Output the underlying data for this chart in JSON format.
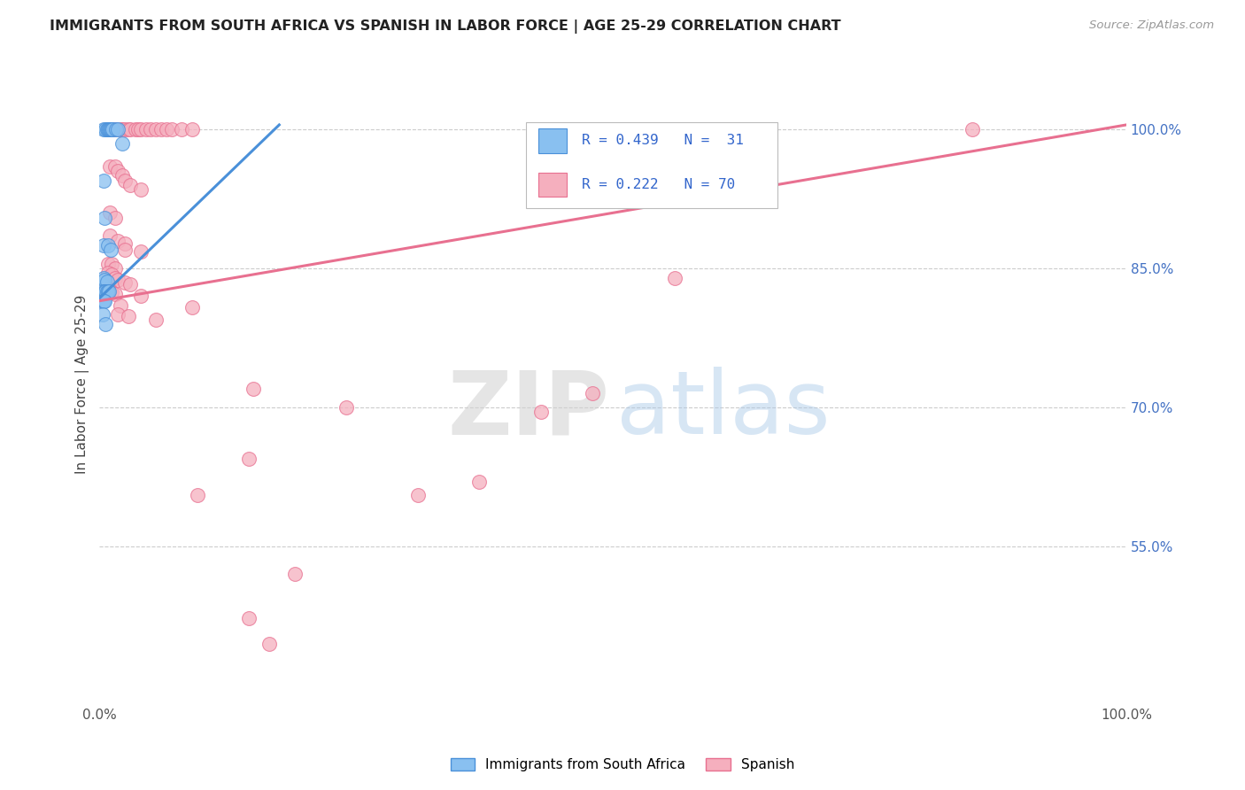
{
  "title": "IMMIGRANTS FROM SOUTH AFRICA VS SPANISH IN LABOR FORCE | AGE 25-29 CORRELATION CHART",
  "source": "Source: ZipAtlas.com",
  "ylabel": "In Labor Force | Age 25-29",
  "xlim": [
    0.0,
    1.0
  ],
  "ylim": [
    0.38,
    1.07
  ],
  "y_ticks": [
    0.55,
    0.7,
    0.85,
    1.0
  ],
  "y_tick_labels": [
    "55.0%",
    "70.0%",
    "85.0%",
    "100.0%"
  ],
  "grid_color": "#cccccc",
  "background_color": "#ffffff",
  "blue_color": "#89C0F0",
  "pink_color": "#F5AFBE",
  "blue_line_color": "#4A90D9",
  "pink_line_color": "#E87090",
  "blue_scatter": [
    [
      0.004,
      1.0
    ],
    [
      0.006,
      1.0
    ],
    [
      0.007,
      1.0
    ],
    [
      0.008,
      1.0
    ],
    [
      0.009,
      1.0
    ],
    [
      0.01,
      1.0
    ],
    [
      0.011,
      1.0
    ],
    [
      0.012,
      1.0
    ],
    [
      0.013,
      1.0
    ],
    [
      0.016,
      1.0
    ],
    [
      0.018,
      1.0
    ],
    [
      0.022,
      0.985
    ],
    [
      0.004,
      0.945
    ],
    [
      0.005,
      0.905
    ],
    [
      0.004,
      0.875
    ],
    [
      0.008,
      0.875
    ],
    [
      0.011,
      0.87
    ],
    [
      0.004,
      0.84
    ],
    [
      0.005,
      0.838
    ],
    [
      0.007,
      0.836
    ],
    [
      0.003,
      0.825
    ],
    [
      0.005,
      0.825
    ],
    [
      0.006,
      0.825
    ],
    [
      0.007,
      0.825
    ],
    [
      0.008,
      0.825
    ],
    [
      0.009,
      0.825
    ],
    [
      0.003,
      0.815
    ],
    [
      0.004,
      0.815
    ],
    [
      0.005,
      0.815
    ],
    [
      0.003,
      0.8
    ],
    [
      0.006,
      0.79
    ]
  ],
  "pink_scatter": [
    [
      0.008,
      1.0
    ],
    [
      0.012,
      1.0
    ],
    [
      0.015,
      1.0
    ],
    [
      0.02,
      1.0
    ],
    [
      0.022,
      1.0
    ],
    [
      0.025,
      1.0
    ],
    [
      0.028,
      1.0
    ],
    [
      0.03,
      1.0
    ],
    [
      0.035,
      1.0
    ],
    [
      0.038,
      1.0
    ],
    [
      0.04,
      1.0
    ],
    [
      0.045,
      1.0
    ],
    [
      0.05,
      1.0
    ],
    [
      0.055,
      1.0
    ],
    [
      0.06,
      1.0
    ],
    [
      0.065,
      1.0
    ],
    [
      0.07,
      1.0
    ],
    [
      0.08,
      1.0
    ],
    [
      0.09,
      1.0
    ],
    [
      0.85,
      1.0
    ],
    [
      0.01,
      0.96
    ],
    [
      0.015,
      0.96
    ],
    [
      0.018,
      0.955
    ],
    [
      0.022,
      0.95
    ],
    [
      0.025,
      0.945
    ],
    [
      0.03,
      0.94
    ],
    [
      0.04,
      0.935
    ],
    [
      0.01,
      0.91
    ],
    [
      0.015,
      0.905
    ],
    [
      0.01,
      0.885
    ],
    [
      0.018,
      0.88
    ],
    [
      0.025,
      0.877
    ],
    [
      0.025,
      0.87
    ],
    [
      0.04,
      0.868
    ],
    [
      0.008,
      0.855
    ],
    [
      0.012,
      0.855
    ],
    [
      0.015,
      0.85
    ],
    [
      0.008,
      0.845
    ],
    [
      0.012,
      0.843
    ],
    [
      0.015,
      0.84
    ],
    [
      0.018,
      0.838
    ],
    [
      0.025,
      0.835
    ],
    [
      0.03,
      0.833
    ],
    [
      0.008,
      0.828
    ],
    [
      0.01,
      0.826
    ],
    [
      0.012,
      0.824
    ],
    [
      0.015,
      0.822
    ],
    [
      0.04,
      0.82
    ],
    [
      0.56,
      0.84
    ],
    [
      0.02,
      0.81
    ],
    [
      0.09,
      0.808
    ],
    [
      0.018,
      0.8
    ],
    [
      0.028,
      0.798
    ],
    [
      0.055,
      0.795
    ],
    [
      0.15,
      0.72
    ],
    [
      0.48,
      0.715
    ],
    [
      0.24,
      0.7
    ],
    [
      0.43,
      0.695
    ],
    [
      0.145,
      0.645
    ],
    [
      0.37,
      0.62
    ],
    [
      0.095,
      0.605
    ],
    [
      0.31,
      0.605
    ],
    [
      0.19,
      0.52
    ],
    [
      0.145,
      0.472
    ],
    [
      0.165,
      0.445
    ]
  ],
  "blue_trend_x": [
    0.0,
    0.175
  ],
  "blue_trend_y": [
    0.818,
    1.005
  ],
  "pink_trend_x": [
    0.0,
    1.0
  ],
  "pink_trend_y": [
    0.815,
    1.005
  ]
}
